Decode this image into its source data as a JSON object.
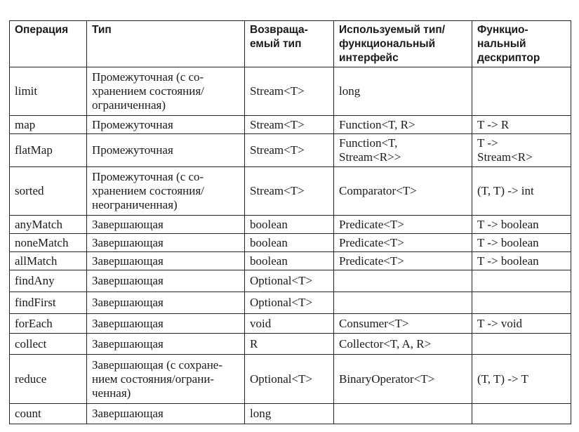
{
  "headers": [
    "Операция",
    "Тип",
    "Возвраща-\nемый тип",
    "Используемый тип/\nфункциональный\nинтерфейс",
    "Функцио-\nнальный\nдескриптор"
  ],
  "rows": [
    [
      "limit",
      "Промежуточная (с со-\nхранением состояния/\nограниченная)",
      "Stream<T>",
      "long",
      ""
    ],
    [
      "map",
      "Промежуточная",
      "Stream<T>",
      "Function<T, R>",
      "T -> R"
    ],
    [
      "flatMap",
      "Промежуточная",
      "Stream<T>",
      "Function<T,\nStream<R>>",
      "T ->\nStream<R>"
    ],
    [
      "sorted",
      "Промежуточная (с со-\nхранением состояния/\nнеограниченная)",
      "Stream<T>",
      "Comparator<T>",
      "(T, T) -> int"
    ],
    [
      "anyMatch",
      "Завершающая",
      "boolean",
      "Predicate<T>",
      "T -> boolean"
    ],
    [
      "noneMatch",
      "Завершающая",
      "boolean",
      "Predicate<T>",
      "T -> boolean"
    ],
    [
      "allMatch",
      "Завершающая",
      "boolean",
      "Predicate<T>",
      "T -> boolean"
    ],
    [
      "findAny",
      "Завершающая",
      "Optional<T>",
      "",
      ""
    ],
    [
      "findFirst",
      "Завершающая",
      "Optional<T>",
      "",
      ""
    ],
    [
      "forEach",
      "Завершающая",
      "void",
      "Consumer<T>",
      "T -> void"
    ],
    [
      "collect",
      "Завершающая",
      "R",
      "Collector<T, A, R>",
      ""
    ],
    [
      "reduce",
      "Завершающая (с сохране-\nнием состояния/ограни-\nченная)",
      "Optional<T>",
      "BinaryOperator<T>",
      "(T, T) -> T"
    ],
    [
      "count",
      "Завершающая",
      "long",
      "",
      ""
    ]
  ]
}
